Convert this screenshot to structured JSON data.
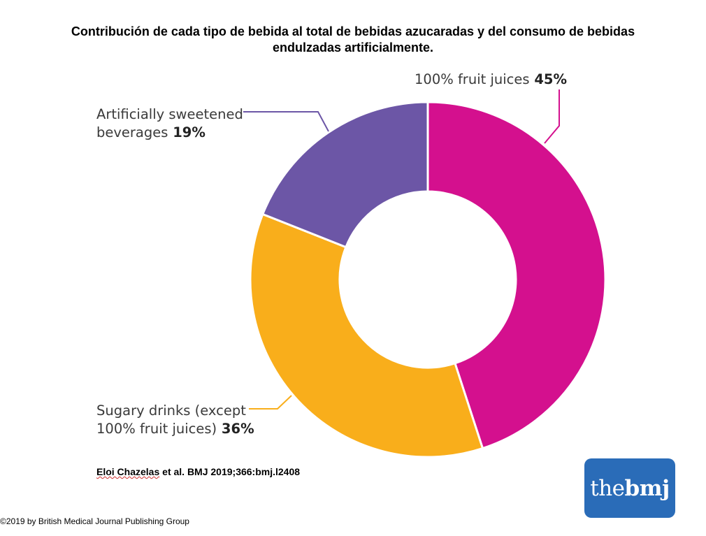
{
  "title": {
    "line1": "Contribución de cada tipo de bebida al total de bebidas azucaradas y del consumo de bebidas",
    "line2": "endulzadas artificialmente."
  },
  "chart_data": {
    "type": "pie",
    "variant": "donut",
    "title": "Contribución de cada tipo de bebida al total de bebidas azucaradas y del consumo de bebidas endulzadas artificialmente.",
    "unit": "%",
    "slices": [
      {
        "name": "100% fruit juices",
        "value": 45,
        "value_label": "45%",
        "color": "#d4108e",
        "label_lines": [
          "100% fruit juices"
        ]
      },
      {
        "name": "Sugary drinks (except 100% fruit juices)",
        "value": 36,
        "value_label": "36%",
        "color": "#f9ae1b",
        "label_lines": [
          "Sugary drinks (except",
          "100% fruit juices)"
        ]
      },
      {
        "name": "Artificially sweetened beverages",
        "value": 19,
        "value_label": "19%",
        "color": "#6c56a6",
        "label_lines": [
          "Artificially sweetened",
          "beverages"
        ]
      }
    ]
  },
  "citation": {
    "author": "Eloi Chazelas",
    "rest": " et al. BMJ 2019;366:bmj.l2408"
  },
  "copyright": "©2019 by British Medical Journal Publishing Group",
  "logo": {
    "part1": "the",
    "part2": "bmj",
    "color": "#2a6cb8"
  }
}
